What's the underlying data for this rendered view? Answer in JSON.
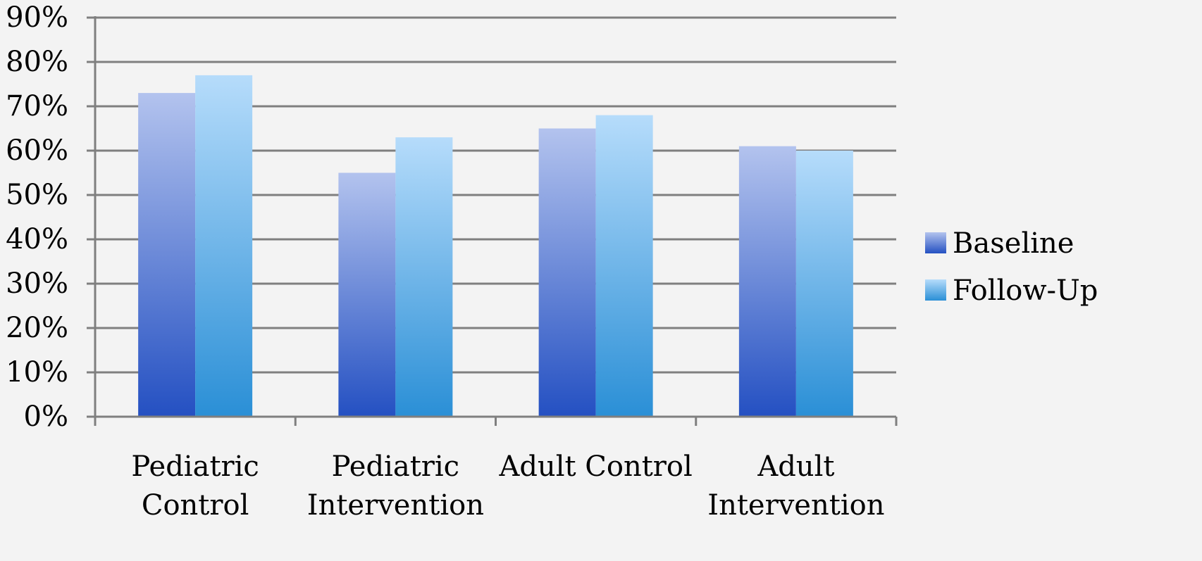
{
  "chart_data": {
    "type": "bar",
    "categories": [
      [
        "Pediatric",
        "Control"
      ],
      [
        "Pediatric",
        "Intervention"
      ],
      [
        "Adult Control"
      ],
      [
        "Adult",
        "Intervention"
      ]
    ],
    "series": [
      {
        "name": "Baseline",
        "values": [
          73,
          55,
          65,
          61
        ],
        "color_top": "#b3c3ee",
        "color_bottom": "#2450c2"
      },
      {
        "name": "Follow-Up",
        "values": [
          77,
          63,
          68,
          60
        ],
        "color_top": "#b6dcfb",
        "color_bottom": "#2a8fd6"
      }
    ],
    "yticks": [
      "0%",
      "10%",
      "20%",
      "30%",
      "40%",
      "50%",
      "60%",
      "70%",
      "80%",
      "90%"
    ],
    "ylim": [
      0,
      90
    ],
    "grid": true,
    "legend_position": "right"
  }
}
